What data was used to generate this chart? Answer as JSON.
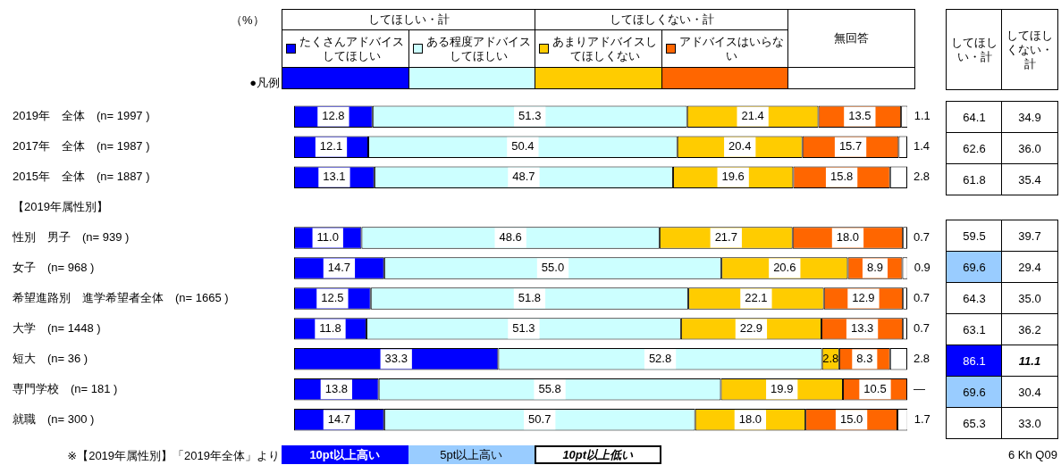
{
  "chart_data": [
    {
      "type": "bar",
      "orientation": "horizontal",
      "stacked": true,
      "legend": "top",
      "tick_labels": "y",
      "xlim": [
        0,
        100
      ],
      "categories": [
        "2019年　全体　(n= 1997 )",
        "2017年　全体　(n= 1987 )",
        "2015年　全体　(n= 1887 )",
        "【2019年属性別】",
        "性別　男子　(n= 939 )",
        "女子　(n= 968 )",
        "希望進路別　進学希望者全体　(n= 1665 )",
        "大学　(n= 1448 )",
        "短大　(n= 36 )",
        "専門学校　(n= 181 )",
        "就職　(n= 300 )"
      ],
      "series": [
        {
          "name": "たくさんアドバイスしてほしい",
          "color": "#0000ff",
          "values": [
            12.8,
            12.1,
            13.1,
            null,
            11.0,
            14.7,
            12.5,
            11.8,
            33.3,
            13.8,
            14.7
          ],
          "value_labels": [
            "12.8",
            "12.1",
            "13.1",
            null,
            "11.0",
            "14.7",
            "12.5",
            "11.8",
            "33.3",
            "13.8",
            "14.7"
          ]
        },
        {
          "name": "ある程度アドバイスしてほしい",
          "color": "#ccffff",
          "values": [
            51.3,
            50.4,
            48.7,
            null,
            48.6,
            55.0,
            51.8,
            51.3,
            52.8,
            55.8,
            50.7
          ],
          "value_labels": [
            "51.3",
            "50.4",
            "48.7",
            null,
            "48.6",
            "55.0",
            "51.8",
            "51.3",
            "52.8",
            "55.8",
            "50.7"
          ]
        },
        {
          "name": "あまりアドバイスしてほしくない",
          "color": "#ffcc00",
          "values": [
            21.4,
            20.4,
            19.6,
            null,
            21.7,
            20.6,
            22.1,
            22.9,
            2.8,
            19.9,
            18.0
          ],
          "value_labels": [
            "21.4",
            "20.4",
            "19.6",
            null,
            "21.7",
            "20.6",
            "22.1",
            "22.9",
            "2.8",
            "19.9",
            "18.0"
          ]
        },
        {
          "name": "アドバイスはいらない",
          "color": "#ff6600",
          "values": [
            13.5,
            15.7,
            15.8,
            null,
            18.0,
            8.9,
            12.9,
            13.3,
            8.3,
            10.5,
            15.0
          ],
          "value_labels": [
            "13.5",
            "15.7",
            "15.8",
            null,
            "18.0",
            "8.9",
            "12.9",
            "13.3",
            "8.3",
            "10.5",
            "15.0"
          ]
        },
        {
          "color": "#ffffff",
          "values": [
            1.1,
            1.4,
            2.8,
            null,
            0.7,
            0.9,
            0.7,
            0.7,
            2.8,
            null,
            1.7
          ],
          "value_labels": [
            "1.1",
            "1.4",
            "2.8",
            null,
            "0.7",
            "0.9",
            "0.7",
            "0.7",
            "2.8",
            "—",
            "1.7"
          ]
        }
      ],
      "annotations": [
        "（%）",
        "●凡例",
        "してほしい・計",
        "してほしくない・計",
        "※【2019年属性別】「2019年全体」より",
        "10pt以上高い",
        "5pt以上高い",
        "10pt以上低い",
        "6 Kh Q09",
        "無回答"
      ]
    },
    {
      "type": "other",
      "annotations": [
        "してほしい・計",
        "してほしくない・計",
        "64.1",
        "34.9",
        "62.6",
        "36.0",
        "61.8",
        "35.4"
      ]
    },
    {
      "type": "other",
      "annotations": [
        "59.5",
        "39.7",
        "69.6",
        "29.4",
        "64.3",
        "35.0",
        "63.1",
        "36.2",
        "86.1",
        "11.1",
        "69.6",
        "30.4",
        "65.3",
        "33.0"
      ]
    }
  ]
}
